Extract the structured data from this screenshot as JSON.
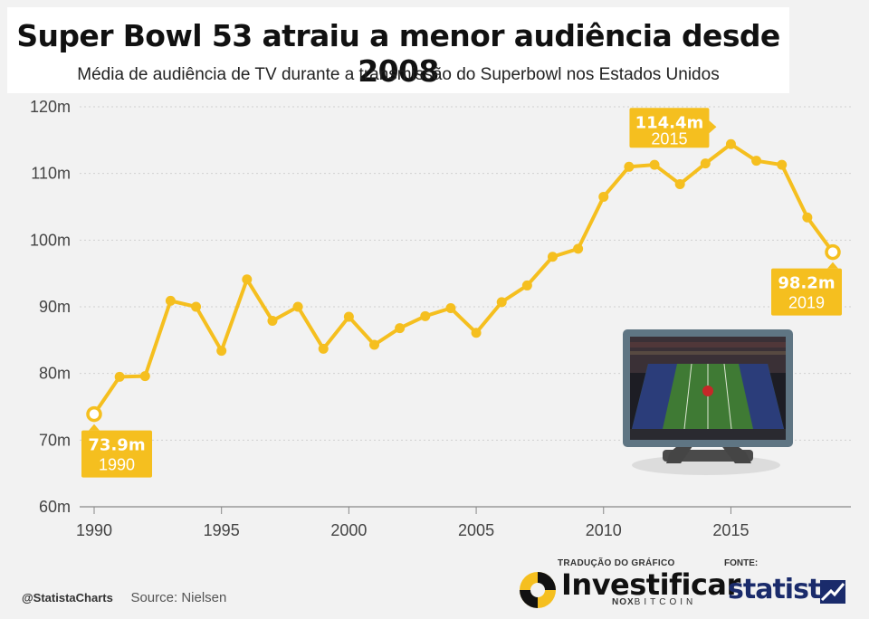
{
  "header": {
    "title": "Super Bowl 53 atraiu a menor audiência desde 2008",
    "subtitle": "Média de audiência de TV durante a transmissão do Superbowl nos Estados Unidos"
  },
  "chart_data": {
    "type": "line",
    "x": [
      1990,
      1991,
      1992,
      1993,
      1994,
      1995,
      1996,
      1997,
      1998,
      1999,
      2000,
      2001,
      2002,
      2003,
      2004,
      2005,
      2006,
      2007,
      2008,
      2009,
      2010,
      2011,
      2012,
      2013,
      2014,
      2015,
      2016,
      2017,
      2018,
      2019
    ],
    "series": [
      {
        "values": [
          73.9,
          79.5,
          79.6,
          90.9,
          90.0,
          83.4,
          94.1,
          87.9,
          90.0,
          83.7,
          88.5,
          84.3,
          86.8,
          88.6,
          89.8,
          86.1,
          90.7,
          93.2,
          97.5,
          98.7,
          106.5,
          111.0,
          111.3,
          108.4,
          111.5,
          114.4,
          111.9,
          111.3,
          103.4,
          98.2
        ]
      }
    ],
    "ylim": [
      60,
      120
    ],
    "yticks": [
      60,
      70,
      80,
      90,
      100,
      110,
      120
    ],
    "ytick_labels": [
      "60m",
      "70m",
      "80m",
      "90m",
      "100m",
      "110m",
      "120m"
    ],
    "xticks": [
      1990,
      1995,
      2000,
      2005,
      2010,
      2015
    ],
    "grid": true,
    "annotations": [
      {
        "value_label": "73.9m",
        "year_label": "1990"
      },
      {
        "value_label": "114.4m",
        "year_label": "2015"
      },
      {
        "value_label": "98.2m",
        "year_label": "2019"
      }
    ],
    "line_color": "#f5bf1f"
  },
  "footer": {
    "handle": "@StatistaCharts",
    "source": "Source: Nielsen",
    "translation_label": "TRADUÇÃO DO GRÁFICO",
    "brand": "Investificar",
    "brand_sub_bold": "NOX",
    "brand_sub": "BITCOIN",
    "source_label": "FONTE:",
    "source_brand": "statista"
  }
}
